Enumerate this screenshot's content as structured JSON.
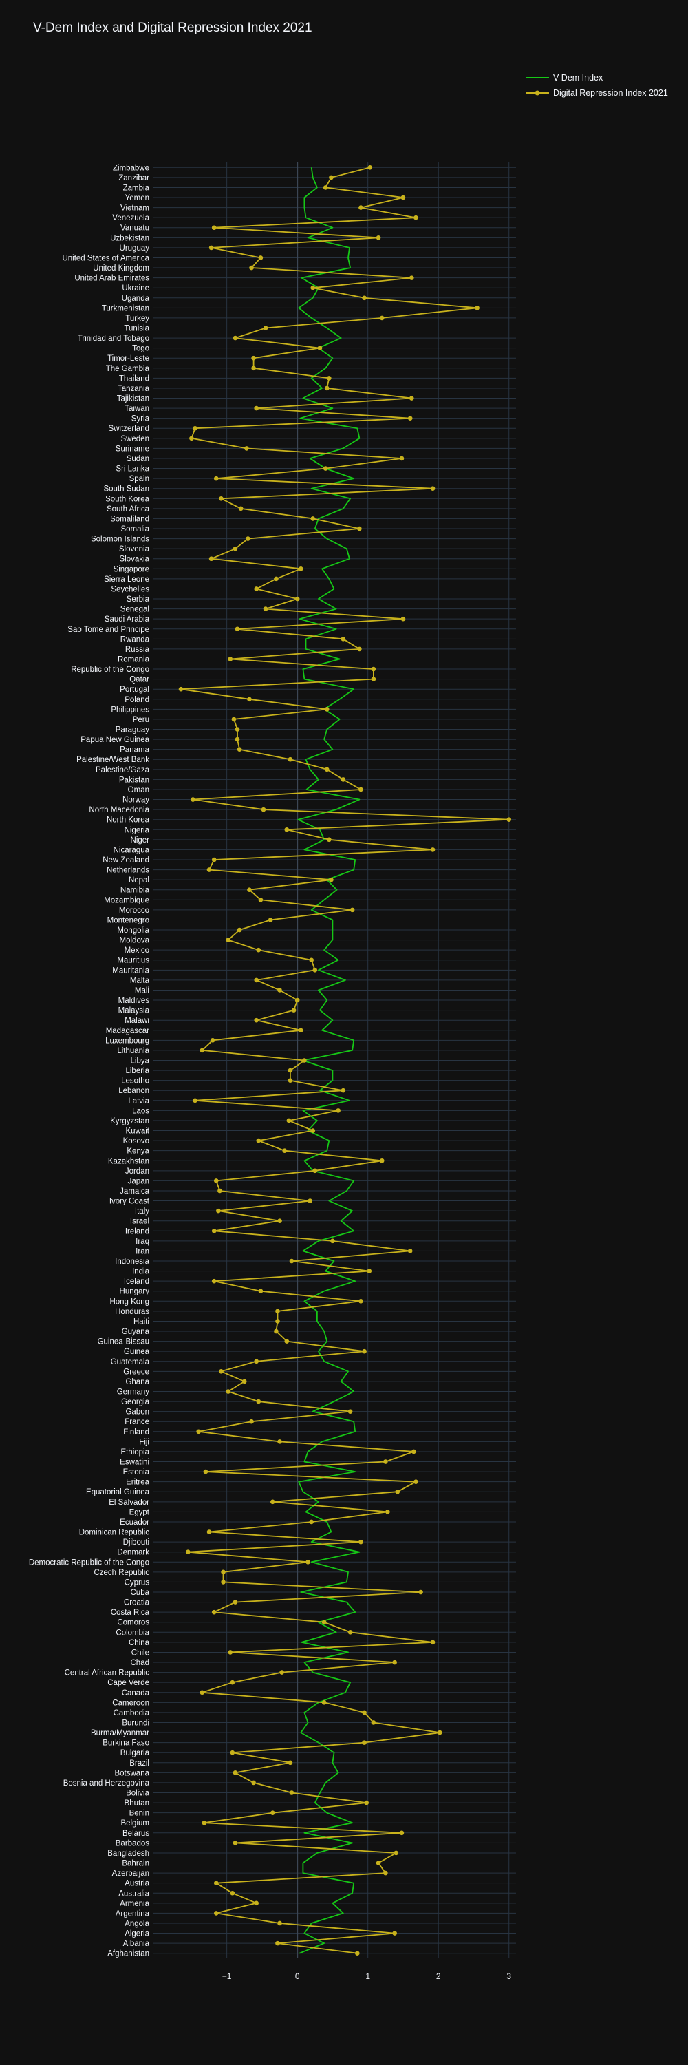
{
  "chart_data": {
    "type": "line",
    "title": "V-Dem Index and Digital Repression Index 2021",
    "xlabel": "",
    "ylabel": "",
    "xlim": [
      -2.05,
      3.1
    ],
    "xticks": [
      -1,
      0,
      1,
      2,
      3
    ],
    "x_tick_labels": [
      "−1",
      "0",
      "1",
      "2",
      "3"
    ],
    "orientation": "horizontal",
    "grid": true,
    "legend_position": "top-right",
    "categories": [
      "Zimbabwe",
      "Zanzibar",
      "Zambia",
      "Yemen",
      "Vietnam",
      "Venezuela",
      "Vanuatu",
      "Uzbekistan",
      "Uruguay",
      "United States of America",
      "United Kingdom",
      "United Arab Emirates",
      "Ukraine",
      "Uganda",
      "Turkmenistan",
      "Turkey",
      "Tunisia",
      "Trinidad and Tobago",
      "Togo",
      "Timor-Leste",
      "The Gambia",
      "Thailand",
      "Tanzania",
      "Tajikistan",
      "Taiwan",
      "Syria",
      "Switzerland",
      "Sweden",
      "Suriname",
      "Sudan",
      "Sri Lanka",
      "Spain",
      "South Sudan",
      "South Korea",
      "South Africa",
      "Somaliland",
      "Somalia",
      "Solomon Islands",
      "Slovenia",
      "Slovakia",
      "Singapore",
      "Sierra Leone",
      "Seychelles",
      "Serbia",
      "Senegal",
      "Saudi Arabia",
      "Sao Tome and Principe",
      "Rwanda",
      "Russia",
      "Romania",
      "Republic of the Congo",
      "Qatar",
      "Portugal",
      "Poland",
      "Philippines",
      "Peru",
      "Paraguay",
      "Papua New Guinea",
      "Panama",
      "Palestine/West Bank",
      "Palestine/Gaza",
      "Pakistan",
      "Oman",
      "Norway",
      "North Macedonia",
      "North Korea",
      "Nigeria",
      "Niger",
      "Nicaragua",
      "New Zealand",
      "Netherlands",
      "Nepal",
      "Namibia",
      "Mozambique",
      "Morocco",
      "Montenegro",
      "Mongolia",
      "Moldova",
      "Mexico",
      "Mauritius",
      "Mauritania",
      "Malta",
      "Mali",
      "Maldives",
      "Malaysia",
      "Malawi",
      "Madagascar",
      "Luxembourg",
      "Lithuania",
      "Libya",
      "Liberia",
      "Lesotho",
      "Lebanon",
      "Latvia",
      "Laos",
      "Kyrgyzstan",
      "Kuwait",
      "Kosovo",
      "Kenya",
      "Kazakhstan",
      "Jordan",
      "Japan",
      "Jamaica",
      "Ivory Coast",
      "Italy",
      "Israel",
      "Ireland",
      "Iraq",
      "Iran",
      "Indonesia",
      "India",
      "Iceland",
      "Hungary",
      "Hong Kong",
      "Honduras",
      "Haiti",
      "Guyana",
      "Guinea-Bissau",
      "Guinea",
      "Guatemala",
      "Greece",
      "Ghana",
      "Germany",
      "Georgia",
      "Gabon",
      "France",
      "Finland",
      "Fiji",
      "Ethiopia",
      "Eswatini",
      "Estonia",
      "Eritrea",
      "Equatorial Guinea",
      "El Salvador",
      "Egypt",
      "Ecuador",
      "Dominican Republic",
      "Djibouti",
      "Denmark",
      "Democratic Republic of the Congo",
      "Czech Republic",
      "Cyprus",
      "Cuba",
      "Croatia",
      "Costa Rica",
      "Comoros",
      "Colombia",
      "China",
      "Chile",
      "Chad",
      "Central African Republic",
      "Cape Verde",
      "Canada",
      "Cameroon",
      "Cambodia",
      "Burundi",
      "Burma/Myanmar",
      "Burkina Faso",
      "Bulgaria",
      "Brazil",
      "Botswana",
      "Bosnia and Herzegovina",
      "Bolivia",
      "Bhutan",
      "Benin",
      "Belgium",
      "Belarus",
      "Barbados",
      "Bangladesh",
      "Bahrain",
      "Azerbaijan",
      "Austria",
      "Australia",
      "Armenia",
      "Argentina",
      "Angola",
      "Algeria",
      "Albania",
      "Afghanistan"
    ],
    "series": [
      {
        "name": "V-Dem Index",
        "color": "#16c716",
        "markers": false,
        "values": [
          0.2,
          0.22,
          0.28,
          0.1,
          0.1,
          0.12,
          0.5,
          0.15,
          0.74,
          0.72,
          0.75,
          0.06,
          0.3,
          0.22,
          0.02,
          0.2,
          0.42,
          0.62,
          0.3,
          0.5,
          0.4,
          0.2,
          0.35,
          0.08,
          0.5,
          0.04,
          0.85,
          0.88,
          0.65,
          0.18,
          0.4,
          0.8,
          0.2,
          0.75,
          0.65,
          0.3,
          0.25,
          0.42,
          0.7,
          0.74,
          0.35,
          0.45,
          0.52,
          0.3,
          0.55,
          0.03,
          0.55,
          0.12,
          0.12,
          0.6,
          0.08,
          0.1,
          0.8,
          0.6,
          0.38,
          0.6,
          0.42,
          0.38,
          0.5,
          0.12,
          0.18,
          0.3,
          0.13,
          0.88,
          0.55,
          0.01,
          0.32,
          0.38,
          0.1,
          0.82,
          0.8,
          0.42,
          0.56,
          0.38,
          0.2,
          0.5,
          0.5,
          0.5,
          0.38,
          0.58,
          0.3,
          0.68,
          0.3,
          0.42,
          0.32,
          0.5,
          0.35,
          0.8,
          0.78,
          0.08,
          0.5,
          0.5,
          0.32,
          0.74,
          0.08,
          0.28,
          0.15,
          0.45,
          0.42,
          0.1,
          0.22,
          0.8,
          0.7,
          0.45,
          0.78,
          0.62,
          0.8,
          0.3,
          0.08,
          0.52,
          0.4,
          0.82,
          0.38,
          0.1,
          0.28,
          0.28,
          0.38,
          0.42,
          0.3,
          0.38,
          0.72,
          0.62,
          0.8,
          0.52,
          0.22,
          0.8,
          0.82,
          0.35,
          0.15,
          0.1,
          0.82,
          0.02,
          0.08,
          0.3,
          0.12,
          0.42,
          0.48,
          0.2,
          0.88,
          0.2,
          0.72,
          0.7,
          0.05,
          0.7,
          0.82,
          0.3,
          0.55,
          0.06,
          0.72,
          0.1,
          0.22,
          0.75,
          0.68,
          0.3,
          0.1,
          0.15,
          0.05,
          0.3,
          0.52,
          0.5,
          0.58,
          0.4,
          0.32,
          0.25,
          0.42,
          0.78,
          0.1,
          0.78,
          0.28,
          0.08,
          0.08,
          0.8,
          0.78,
          0.5,
          0.65,
          0.2,
          0.1,
          0.38,
          0.03
        ]
      },
      {
        "name": "Digital Repression Index 2021",
        "color": "#c8b21c",
        "markers": true,
        "values": [
          1.03,
          0.48,
          0.4,
          1.5,
          0.9,
          1.68,
          -1.18,
          1.15,
          -1.22,
          -0.52,
          -0.65,
          1.62,
          0.22,
          0.95,
          2.55,
          1.2,
          -0.45,
          -0.88,
          0.32,
          -0.62,
          -0.62,
          0.45,
          0.42,
          1.62,
          -0.58,
          1.6,
          -1.45,
          -1.5,
          -0.72,
          1.48,
          0.4,
          -1.15,
          1.92,
          -1.08,
          -0.8,
          0.22,
          0.88,
          -0.7,
          -0.88,
          -1.22,
          0.05,
          -0.3,
          -0.58,
          0.0,
          -0.45,
          1.5,
          -0.85,
          0.65,
          0.88,
          -0.95,
          1.08,
          1.08,
          -1.65,
          -0.68,
          0.42,
          -0.9,
          -0.85,
          -0.85,
          -0.82,
          -0.1,
          0.42,
          0.65,
          0.9,
          -1.48,
          -0.48,
          3.0,
          -0.15,
          0.45,
          1.92,
          -1.18,
          -1.25,
          0.48,
          -0.68,
          -0.52,
          0.78,
          -0.38,
          -0.82,
          -0.98,
          -0.55,
          0.2,
          0.25,
          -0.58,
          -0.25,
          0.0,
          -0.05,
          -0.58,
          0.05,
          -1.2,
          -1.35,
          0.1,
          -0.1,
          -0.1,
          0.65,
          -1.45,
          0.58,
          -0.12,
          0.22,
          -0.55,
          -0.18,
          1.2,
          0.25,
          -1.15,
          -1.1,
          0.18,
          -1.12,
          -0.25,
          -1.18,
          0.5,
          1.6,
          -0.08,
          1.02,
          -1.18,
          -0.52,
          0.9,
          -0.28,
          -0.28,
          -0.3,
          -0.15,
          0.95,
          -0.58,
          -1.08,
          -0.75,
          -0.98,
          -0.55,
          0.75,
          -0.65,
          -1.4,
          -0.25,
          1.65,
          1.25,
          -1.3,
          1.68,
          1.42,
          -0.35,
          1.28,
          0.2,
          -1.25,
          0.9,
          -1.55,
          0.15,
          -1.05,
          -1.05,
          1.75,
          -0.88,
          -1.18,
          0.38,
          0.75,
          1.92,
          -0.95,
          1.38,
          -0.22,
          -0.92,
          -1.35,
          0.38,
          0.95,
          1.08,
          2.02,
          0.95,
          -0.92,
          -0.1,
          -0.88,
          -0.62,
          -0.08,
          0.98,
          -0.35,
          -1.32,
          1.48,
          -0.88,
          1.4,
          1.15,
          1.25,
          -1.15,
          -0.92,
          -0.58,
          -1.15,
          -0.25,
          1.38,
          -0.28,
          0.85
        ]
      }
    ]
  }
}
